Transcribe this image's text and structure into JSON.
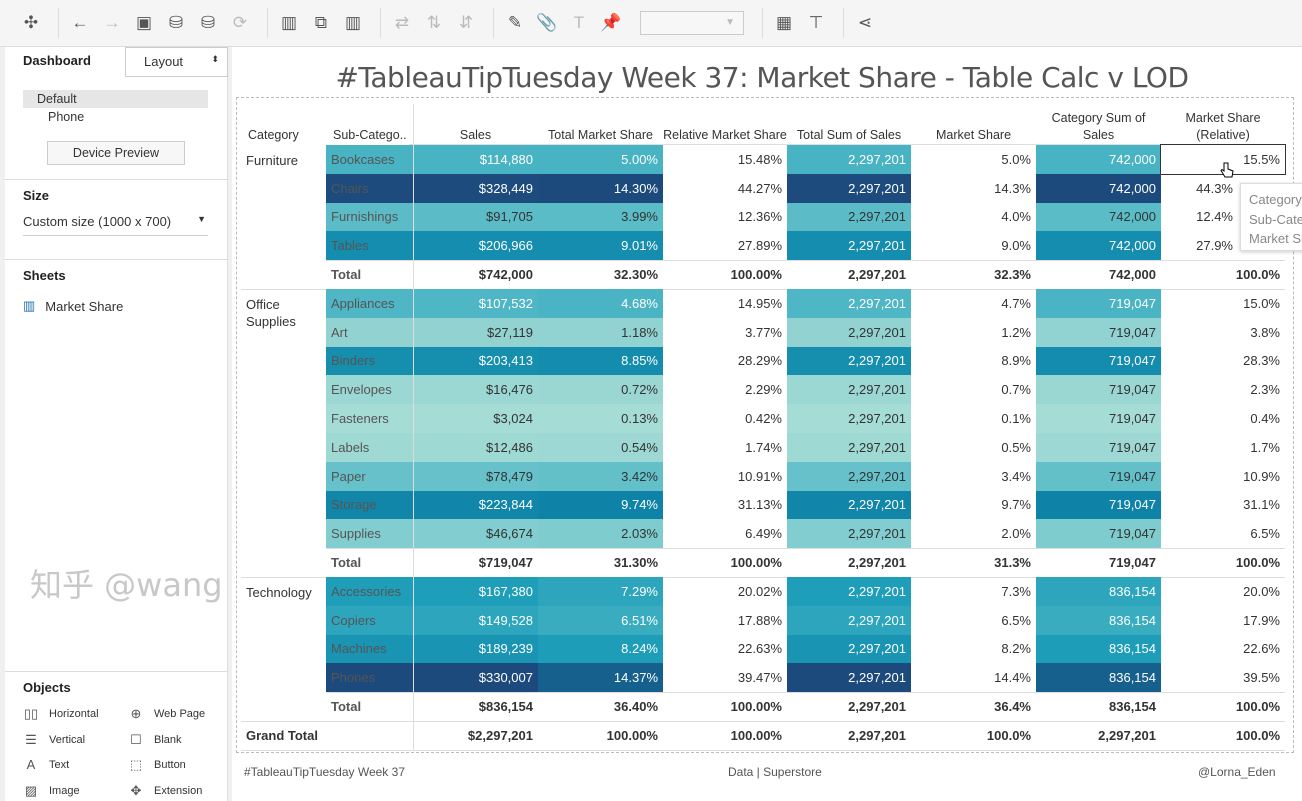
{
  "toolbar": {
    "icons": [
      "tableau-logo-icon",
      "undo-icon",
      "redo-icon",
      "save-icon",
      "new-data-source-icon",
      "pause-updates-icon",
      "refresh-icon",
      "new-worksheet-icon",
      "duplicate-sheet-icon",
      "clear-sheet-icon",
      "swap-icon",
      "sort-ascending-icon",
      "sort-descending-icon",
      "highlight-icon",
      "group-icon",
      "label-icon",
      "pin-icon",
      "show-me-icon",
      "presentation-icon",
      "share-icon"
    ]
  },
  "left": {
    "tab_dashboard": "Dashboard",
    "tab_layout": "Layout",
    "device_default": "Default",
    "device_phone": "Phone",
    "device_preview": "Device Preview",
    "size_title": "Size",
    "size_value": "Custom size (1000 x 700)",
    "sheets_title": "Sheets",
    "sheet_name": "Market Share",
    "objects_title": "Objects",
    "objects": [
      {
        "label": "Horizontal",
        "icon": "horizontal-icon"
      },
      {
        "label": "Web Page",
        "icon": "globe-icon"
      },
      {
        "label": "Vertical",
        "icon": "vertical-icon"
      },
      {
        "label": "Blank",
        "icon": "blank-icon"
      },
      {
        "label": "Text",
        "icon": "text-icon"
      },
      {
        "label": "Button",
        "icon": "button-icon"
      },
      {
        "label": "Image",
        "icon": "image-icon"
      },
      {
        "label": "Extension",
        "icon": "extension-icon"
      }
    ]
  },
  "dashboard": {
    "title": "#TableauTipTuesday Week 37: Market Share - Table Calc v LOD",
    "headers": [
      "Category",
      "Sub-Catego..",
      "Sales",
      "Total Market Share",
      "Relative Market Share",
      "Total Sum of Sales",
      "Market Share",
      "Category Sum of Sales",
      "Market Share (Relative)"
    ],
    "groups": [
      {
        "category": "Furniture",
        "rows": [
          [
            "Bookcases",
            "$114,880",
            "5.00%",
            "15.48%",
            "2,297,201",
            "5.0%",
            "742,000",
            "15.5%"
          ],
          [
            "Chairs",
            "$328,449",
            "14.30%",
            "44.27%",
            "2,297,201",
            "14.3%",
            "742,000",
            "44.3%"
          ],
          [
            "Furnishings",
            "$91,705",
            "3.99%",
            "12.36%",
            "2,297,201",
            "4.0%",
            "742,000",
            "12.4%"
          ],
          [
            "Tables",
            "$206,966",
            "9.01%",
            "27.89%",
            "2,297,201",
            "9.0%",
            "742,000",
            "27.9%"
          ]
        ],
        "total": [
          "Total",
          "$742,000",
          "32.30%",
          "100.00%",
          "2,297,201",
          "32.3%",
          "742,000",
          "100.0%"
        ]
      },
      {
        "category": "Office Supplies",
        "rows": [
          [
            "Appliances",
            "$107,532",
            "4.68%",
            "14.95%",
            "2,297,201",
            "4.7%",
            "719,047",
            "15.0%"
          ],
          [
            "Art",
            "$27,119",
            "1.18%",
            "3.77%",
            "2,297,201",
            "1.2%",
            "719,047",
            "3.8%"
          ],
          [
            "Binders",
            "$203,413",
            "8.85%",
            "28.29%",
            "2,297,201",
            "8.9%",
            "719,047",
            "28.3%"
          ],
          [
            "Envelopes",
            "$16,476",
            "0.72%",
            "2.29%",
            "2,297,201",
            "0.7%",
            "719,047",
            "2.3%"
          ],
          [
            "Fasteners",
            "$3,024",
            "0.13%",
            "0.42%",
            "2,297,201",
            "0.1%",
            "719,047",
            "0.4%"
          ],
          [
            "Labels",
            "$12,486",
            "0.54%",
            "1.74%",
            "2,297,201",
            "0.5%",
            "719,047",
            "1.7%"
          ],
          [
            "Paper",
            "$78,479",
            "3.42%",
            "10.91%",
            "2,297,201",
            "3.4%",
            "719,047",
            "10.9%"
          ],
          [
            "Storage",
            "$223,844",
            "9.74%",
            "31.13%",
            "2,297,201",
            "9.7%",
            "719,047",
            "31.1%"
          ],
          [
            "Supplies",
            "$46,674",
            "2.03%",
            "6.49%",
            "2,297,201",
            "2.0%",
            "719,047",
            "6.5%"
          ]
        ],
        "total": [
          "Total",
          "$719,047",
          "31.30%",
          "100.00%",
          "2,297,201",
          "31.3%",
          "719,047",
          "100.0%"
        ]
      },
      {
        "category": "Technology",
        "rows": [
          [
            "Accessories",
            "$167,380",
            "7.29%",
            "20.02%",
            "2,297,201",
            "7.3%",
            "836,154",
            "20.0%"
          ],
          [
            "Copiers",
            "$149,528",
            "6.51%",
            "17.88%",
            "2,297,201",
            "6.5%",
            "836,154",
            "17.9%"
          ],
          [
            "Machines",
            "$189,239",
            "8.24%",
            "22.63%",
            "2,297,201",
            "8.2%",
            "836,154",
            "22.6%"
          ],
          [
            "Phones",
            "$330,007",
            "14.37%",
            "39.47%",
            "2,297,201",
            "14.4%",
            "836,154",
            "39.5%"
          ]
        ],
        "total": [
          "Total",
          "$836,154",
          "36.40%",
          "100.00%",
          "2,297,201",
          "36.4%",
          "836,154",
          "100.0%"
        ]
      }
    ],
    "grand_total": [
      "Grand Total",
      "$2,297,201",
      "100.00%",
      "100.00%",
      "2,297,201",
      "100.0%",
      "2,297,201",
      "100.0%"
    ],
    "footer_left": "#TableauTipTuesday Week 37",
    "footer_mid": "Data | Superstore",
    "footer_right": "@Lorna_Eden"
  },
  "tooltip": {
    "lines": [
      "Category",
      "Sub-Category",
      "Market Share"
    ]
  },
  "watermark": "知乎 @wang",
  "colors": {
    "ramp": [
      "#a9ddd6",
      "#62c0c9",
      "#1f9fba",
      "#0b7ca2",
      "#1d4a7c"
    ]
  }
}
